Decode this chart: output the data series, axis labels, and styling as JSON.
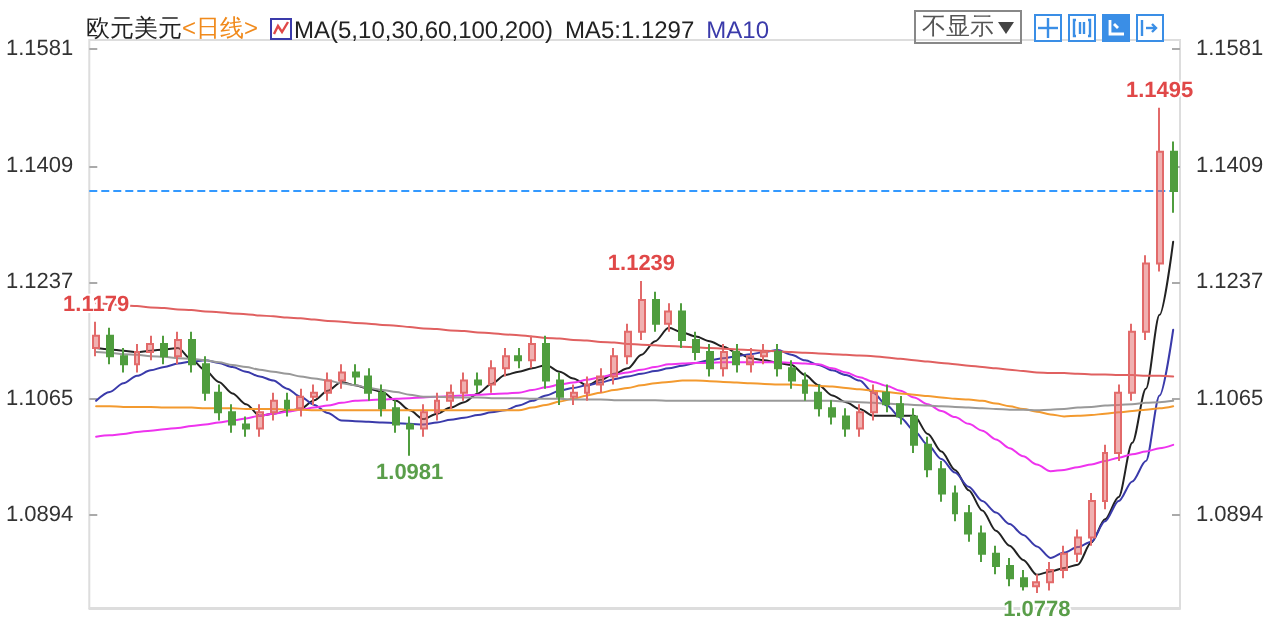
{
  "chart_data": {
    "type": "candlestick",
    "title": "欧元美元",
    "subtitle": "<日线>",
    "categories": [
      null,
      null,
      null,
      null,
      null,
      null,
      null,
      null,
      null,
      null,
      null,
      null,
      null,
      null,
      null,
      null,
      null,
      null,
      null,
      null,
      null,
      null,
      null,
      null,
      null,
      null,
      null,
      null,
      null,
      null,
      null,
      null,
      null,
      null,
      null,
      null,
      null,
      null,
      null,
      null,
      null,
      null,
      null,
      null,
      null,
      null,
      null,
      null,
      null,
      null,
      null,
      null,
      null,
      null,
      null,
      null,
      null,
      null,
      null,
      null,
      null,
      null,
      null,
      null,
      null,
      null,
      null,
      null,
      null,
      null,
      null,
      null,
      null,
      null,
      null,
      null,
      null,
      null,
      null,
      null
    ],
    "ohlc": [
      [
        1.114,
        1.1179,
        1.1128,
        1.1158
      ],
      [
        1.1158,
        1.117,
        1.1116,
        1.1128
      ],
      [
        1.1128,
        1.114,
        1.1104,
        1.1116
      ],
      [
        1.1116,
        1.1146,
        1.1104,
        1.1134
      ],
      [
        1.1134,
        1.1158,
        1.1122,
        1.1146
      ],
      [
        1.1146,
        1.1158,
        1.1116,
        1.1128
      ],
      [
        1.1128,
        1.1164,
        1.1116,
        1.1152
      ],
      [
        1.1152,
        1.1164,
        1.1104,
        1.1116
      ],
      [
        1.1116,
        1.1128,
        1.1062,
        1.1074
      ],
      [
        1.1074,
        1.1086,
        1.1033,
        1.1045
      ],
      [
        1.1045,
        1.1057,
        1.1015,
        1.1027
      ],
      [
        1.1027,
        1.1039,
        1.1009,
        1.1021
      ],
      [
        1.1021,
        1.1057,
        1.1009,
        1.1045
      ],
      [
        1.1045,
        1.1074,
        1.1033,
        1.1062
      ],
      [
        1.1062,
        1.1074,
        1.1039,
        1.1051
      ],
      [
        1.1051,
        1.108,
        1.1039,
        1.1068
      ],
      [
        1.1068,
        1.1086,
        1.1056,
        1.1074
      ],
      [
        1.1074,
        1.1104,
        1.1062,
        1.1092
      ],
      [
        1.1092,
        1.1116,
        1.108,
        1.1104
      ],
      [
        1.1104,
        1.1116,
        1.1086,
        1.1098
      ],
      [
        1.1098,
        1.111,
        1.1062,
        1.1074
      ],
      [
        1.1074,
        1.1086,
        1.1039,
        1.1051
      ],
      [
        1.1051,
        1.1063,
        1.1015,
        1.1027
      ],
      [
        1.1027,
        1.1039,
        1.0981,
        1.1021
      ],
      [
        1.1021,
        1.1057,
        1.1009,
        1.1045
      ],
      [
        1.1045,
        1.1074,
        1.1033,
        1.1062
      ],
      [
        1.1062,
        1.1086,
        1.105,
        1.1074
      ],
      [
        1.1074,
        1.1104,
        1.1062,
        1.1092
      ],
      [
        1.1092,
        1.1104,
        1.1074,
        1.1086
      ],
      [
        1.1086,
        1.1122,
        1.1074,
        1.111
      ],
      [
        1.111,
        1.114,
        1.1098,
        1.1128
      ],
      [
        1.1128,
        1.114,
        1.111,
        1.1122
      ],
      [
        1.1122,
        1.1158,
        1.111,
        1.1146
      ],
      [
        1.1146,
        1.1158,
        1.108,
        1.1092
      ],
      [
        1.1092,
        1.1104,
        1.1056,
        1.1068
      ],
      [
        1.1068,
        1.1086,
        1.1056,
        1.1074
      ],
      [
        1.1074,
        1.1098,
        1.1062,
        1.1086
      ],
      [
        1.1086,
        1.111,
        1.1074,
        1.1098
      ],
      [
        1.1098,
        1.114,
        1.1086,
        1.1128
      ],
      [
        1.1128,
        1.1176,
        1.1116,
        1.1164
      ],
      [
        1.1164,
        1.1239,
        1.1152,
        1.1211
      ],
      [
        1.1211,
        1.1223,
        1.1164,
        1.1176
      ],
      [
        1.1176,
        1.1206,
        1.1164,
        1.1194
      ],
      [
        1.1194,
        1.1206,
        1.114,
        1.1152
      ],
      [
        1.1152,
        1.1164,
        1.1122,
        1.1134
      ],
      [
        1.1134,
        1.1146,
        1.1098,
        1.111
      ],
      [
        1.111,
        1.1146,
        1.1098,
        1.1134
      ],
      [
        1.1134,
        1.1146,
        1.1104,
        1.1116
      ],
      [
        1.1116,
        1.114,
        1.1104,
        1.1128
      ],
      [
        1.1128,
        1.1146,
        1.1116,
        1.1134
      ],
      [
        1.1134,
        1.1146,
        1.1098,
        1.111
      ],
      [
        1.111,
        1.1122,
        1.108,
        1.1092
      ],
      [
        1.1092,
        1.1104,
        1.1062,
        1.1074
      ],
      [
        1.1074,
        1.1086,
        1.1039,
        1.1051
      ],
      [
        1.1051,
        1.1063,
        1.1027,
        1.1039
      ],
      [
        1.1039,
        1.1051,
        1.1009,
        1.1021
      ],
      [
        1.1021,
        1.1057,
        1.1009,
        1.1045
      ],
      [
        1.1045,
        1.1086,
        1.1033,
        1.1074
      ],
      [
        1.1074,
        1.1086,
        1.1045,
        1.1057
      ],
      [
        1.1057,
        1.1069,
        1.1027,
        1.1039
      ],
      [
        1.1039,
        1.1051,
        1.0985,
        1.0997
      ],
      [
        1.0997,
        1.1009,
        1.0949,
        1.0961
      ],
      [
        1.0961,
        1.0973,
        1.0913,
        1.0925
      ],
      [
        1.0925,
        1.0937,
        1.0884,
        1.0896
      ],
      [
        1.0896,
        1.0908,
        1.0854,
        1.0866
      ],
      [
        1.0866,
        1.0878,
        1.0824,
        1.0836
      ],
      [
        1.0836,
        1.0848,
        1.0806,
        1.0818
      ],
      [
        1.0818,
        1.083,
        1.0788,
        1.08
      ],
      [
        1.08,
        1.0812,
        1.0782,
        1.0788
      ],
      [
        1.0788,
        1.0806,
        1.0778,
        1.0794
      ],
      [
        1.0794,
        1.0824,
        1.0782,
        1.0812
      ],
      [
        1.0812,
        1.0848,
        1.08,
        1.0836
      ],
      [
        1.0836,
        1.0872,
        1.0824,
        1.086
      ],
      [
        1.086,
        1.0926,
        1.0848,
        1.0914
      ],
      [
        1.0914,
        1.0997,
        1.0902,
        1.0985
      ],
      [
        1.0985,
        1.1086,
        1.0973,
        1.1074
      ],
      [
        1.1074,
        1.1176,
        1.1062,
        1.1164
      ],
      [
        1.1164,
        1.1277,
        1.1152,
        1.1265
      ],
      [
        1.1265,
        1.1495,
        1.1253,
        1.143
      ],
      [
        1.143,
        1.1445,
        1.134,
        1.1372
      ]
    ],
    "colors": [
      "#e26a6a",
      "#4f9d3e",
      "#4f9d3e",
      "#e26a6a",
      "#e26a6a",
      "#4f9d3e",
      "#e26a6a",
      "#4f9d3e",
      "#4f9d3e",
      "#4f9d3e",
      "#4f9d3e",
      "#4f9d3e",
      "#e26a6a",
      "#e26a6a",
      "#4f9d3e",
      "#e26a6a",
      "#e26a6a",
      "#e26a6a",
      "#e26a6a",
      "#4f9d3e",
      "#4f9d3e",
      "#4f9d3e",
      "#4f9d3e",
      "#4f9d3e",
      "#e26a6a",
      "#e26a6a",
      "#e26a6a",
      "#e26a6a",
      "#4f9d3e",
      "#e26a6a",
      "#e26a6a",
      "#4f9d3e",
      "#e26a6a",
      "#4f9d3e",
      "#4f9d3e",
      "#e26a6a",
      "#e26a6a",
      "#e26a6a",
      "#e26a6a",
      "#e26a6a",
      "#e26a6a",
      "#4f9d3e",
      "#e26a6a",
      "#4f9d3e",
      "#4f9d3e",
      "#4f9d3e",
      "#e26a6a",
      "#4f9d3e",
      "#e26a6a",
      "#e26a6a",
      "#4f9d3e",
      "#4f9d3e",
      "#4f9d3e",
      "#4f9d3e",
      "#4f9d3e",
      "#4f9d3e",
      "#e26a6a",
      "#e26a6a",
      "#4f9d3e",
      "#4f9d3e",
      "#4f9d3e",
      "#4f9d3e",
      "#4f9d3e",
      "#4f9d3e",
      "#4f9d3e",
      "#4f9d3e",
      "#4f9d3e",
      "#4f9d3e",
      "#4f9d3e",
      "#e26a6a",
      "#e26a6a",
      "#e26a6a",
      "#e26a6a",
      "#e26a6a",
      "#e26a6a",
      "#e26a6a",
      "#e26a6a",
      "#e26a6a",
      "#e26a6a",
      "#4f9d3e"
    ],
    "series": [
      {
        "type": "line",
        "name": "MA5:1.1297",
        "color": "#222222",
        "values": [
          1.114,
          1.1138,
          1.1136,
          1.1134,
          1.1136,
          1.1138,
          1.114,
          1.1123,
          1.1107,
          1.109,
          1.1073,
          1.1057,
          1.104,
          1.1043,
          1.1047,
          1.105,
          1.1063,
          1.1077,
          1.109,
          1.1085,
          1.108,
          1.1075,
          1.1062,
          1.1048,
          1.1035,
          1.1043,
          1.1052,
          1.106,
          1.1073,
          1.1087,
          1.11,
          1.1105,
          1.111,
          1.1115,
          1.1105,
          1.1095,
          1.1085,
          1.1093,
          1.1102,
          1.111,
          1.113,
          1.115,
          1.117,
          1.1163,
          1.1157,
          1.115,
          1.1142,
          1.1133,
          1.1125,
          1.1122,
          1.1118,
          1.1115,
          1.11,
          1.1085,
          1.107,
          1.106,
          1.105,
          1.104,
          1.104,
          1.104,
          1.104,
          1.1013,
          1.0987,
          1.096,
          1.093,
          1.09,
          1.087,
          1.0848,
          1.0827,
          1.0805,
          1.081,
          1.0815,
          1.082,
          1.0853,
          1.0887,
          1.092,
          1.1,
          1.108,
          1.1189,
          1.1297
        ]
      },
      {
        "type": "line",
        "name": "MA10",
        "color": "#3a3aaa",
        "values": [
          1.1062,
          1.1075,
          1.1088,
          1.1099,
          1.1107,
          1.1112,
          1.1117,
          1.112,
          1.1122,
          1.1118,
          1.1112,
          1.1105,
          1.1098,
          1.1092,
          1.108,
          1.1068,
          1.1056,
          1.1044,
          1.1033,
          1.1032,
          1.1031,
          1.103,
          1.1029,
          1.1028,
          1.1027,
          1.103,
          1.1034,
          1.1037,
          1.1041,
          1.1045,
          1.1048,
          1.1055,
          1.1062,
          1.107,
          1.1077,
          1.1081,
          1.1085,
          1.1089,
          1.1094,
          1.1098,
          1.1102,
          1.1106,
          1.111,
          1.1114,
          1.1118,
          1.1122,
          1.1125,
          1.1128,
          1.1131,
          1.1134,
          1.1137,
          1.113,
          1.1122,
          1.1115,
          1.1107,
          1.11,
          1.1092,
          1.1074,
          1.1055,
          1.1037,
          1.1018,
          1.0997,
          1.0976,
          1.0956,
          1.0935,
          1.0914,
          1.0897,
          1.088,
          1.0864,
          1.0847,
          1.083,
          1.0838,
          1.0846,
          1.0854,
          1.0884,
          1.0914,
          1.0943,
          1.0973,
          1.107,
          1.1167
        ]
      },
      {
        "type": "line",
        "color": "#ee33ee",
        "values": [
          1.1009,
          1.1011,
          1.1013,
          1.1016,
          1.1018,
          1.102,
          1.1022,
          1.1025,
          1.1027,
          1.103,
          1.1033,
          1.1036,
          1.104,
          1.1043,
          1.1046,
          1.1049,
          1.1052,
          1.1055,
          1.1059,
          1.1062,
          1.1063,
          1.1064,
          1.1065,
          1.1066,
          1.1067,
          1.1068,
          1.1069,
          1.107,
          1.1071,
          1.1072,
          1.1073,
          1.1074,
          1.1078,
          1.1082,
          1.1086,
          1.1089,
          1.1093,
          1.1097,
          1.1101,
          1.1104,
          1.1108,
          1.1112,
          1.1116,
          1.1117,
          1.1118,
          1.1118,
          1.1119,
          1.1119,
          1.1119,
          1.1119,
          1.1119,
          1.1118,
          1.1117,
          1.1116,
          1.111,
          1.1104,
          1.1097,
          1.109,
          1.1084,
          1.1077,
          1.1067,
          1.1057,
          1.1047,
          1.1038,
          1.1028,
          1.1018,
          1.1005,
          1.0992,
          1.098,
          1.0968,
          1.0958,
          1.096,
          1.0964,
          1.0968,
          1.0973,
          1.0978,
          1.0983,
          1.0987,
          1.0992,
          1.0997
        ]
      },
      {
        "type": "line",
        "color": "#f39a2f",
        "values": [
          1.1054,
          1.1054,
          1.1053,
          1.1053,
          1.1053,
          1.1052,
          1.1052,
          1.1052,
          1.1051,
          1.1051,
          1.1051,
          1.105,
          1.105,
          1.105,
          1.1049,
          1.1049,
          1.1048,
          1.1048,
          1.1048,
          1.1048,
          1.1048,
          1.1048,
          1.1048,
          1.1048,
          1.1048,
          1.1048,
          1.1048,
          1.1048,
          1.1048,
          1.1048,
          1.1048,
          1.1048,
          1.1052,
          1.1056,
          1.1061,
          1.1065,
          1.107,
          1.1074,
          1.1078,
          1.1081,
          1.1085,
          1.1088,
          1.109,
          1.1092,
          1.1092,
          1.1091,
          1.109,
          1.1089,
          1.1088,
          1.1087,
          1.1086,
          1.1086,
          1.1085,
          1.1084,
          1.1083,
          1.1081,
          1.1079,
          1.1077,
          1.1075,
          1.1073,
          1.1071,
          1.1069,
          1.1067,
          1.1065,
          1.1064,
          1.1062,
          1.1058,
          1.1054,
          1.105,
          1.1046,
          1.1042,
          1.1039,
          1.104,
          1.1041,
          1.1043,
          1.1045,
          1.1047,
          1.1049,
          1.1051,
          1.1054
        ]
      },
      {
        "type": "line",
        "color": "#999999",
        "values": [
          1.1134,
          1.1133,
          1.1131,
          1.113,
          1.1128,
          1.1127,
          1.1125,
          1.1124,
          1.1122,
          1.1119,
          1.1115,
          1.1112,
          1.1108,
          1.1105,
          1.1102,
          1.1098,
          1.1095,
          1.1092,
          1.1088,
          1.1085,
          1.1081,
          1.1078,
          1.1075,
          1.1071,
          1.1068,
          1.1068,
          1.1067,
          1.1067,
          1.1067,
          1.1066,
          1.1066,
          1.1066,
          1.1065,
          1.1065,
          1.1065,
          1.1064,
          1.1064,
          1.1064,
          1.1063,
          1.1063,
          1.1063,
          1.1063,
          1.1062,
          1.1062,
          1.1062,
          1.1062,
          1.1062,
          1.1062,
          1.1062,
          1.1062,
          1.1062,
          1.1062,
          1.1062,
          1.1062,
          1.1062,
          1.1061,
          1.106,
          1.1059,
          1.1058,
          1.1057,
          1.1056,
          1.1055,
          1.1054,
          1.1053,
          1.1052,
          1.1051,
          1.105,
          1.1049,
          1.1049,
          1.1048,
          1.1049,
          1.105,
          1.1052,
          1.1053,
          1.1055,
          1.1056,
          1.1057,
          1.1059,
          1.106,
          1.1062
        ]
      },
      {
        "type": "line",
        "color": "#e06060",
        "values": [
          1.1206,
          1.1205,
          1.1203,
          1.1202,
          1.12,
          1.1199,
          1.1197,
          1.1196,
          1.1194,
          1.1193,
          1.1191,
          1.119,
          1.1188,
          1.1187,
          1.1185,
          1.1184,
          1.1182,
          1.118,
          1.1179,
          1.1177,
          1.1176,
          1.1174,
          1.1173,
          1.1171,
          1.1169,
          1.1168,
          1.1166,
          1.1165,
          1.1163,
          1.1162,
          1.116,
          1.1159,
          1.1157,
          1.1155,
          1.1154,
          1.1152,
          1.1151,
          1.1149,
          1.1148,
          1.1146,
          1.1145,
          1.1144,
          1.1143,
          1.1142,
          1.1141,
          1.114,
          1.1139,
          1.1138,
          1.1137,
          1.1136,
          1.1135,
          1.1134,
          1.1133,
          1.1132,
          1.1131,
          1.113,
          1.1129,
          1.1128,
          1.1126,
          1.1124,
          1.1122,
          1.112,
          1.1118,
          1.1116,
          1.1114,
          1.1112,
          1.111,
          1.1108,
          1.1106,
          1.1104,
          1.1103,
          1.1103,
          1.1102,
          1.1101,
          1.1101,
          1.11,
          1.11,
          1.1099,
          1.1099,
          1.1098
        ]
      }
    ],
    "ylim": [
      1.0756,
      1.1595
    ],
    "yticks": [
      1.0894,
      1.1065,
      1.1237,
      1.1409,
      1.1581
    ],
    "y2lim": [
      1.0756,
      1.1595
    ],
    "y2ticks": [
      1.0894,
      1.1065,
      1.1237,
      1.1409,
      1.1581
    ],
    "ref_lines": [
      {
        "axis": "y",
        "value": 1.1372,
        "color": "#3399ff",
        "line_style": "dashed"
      }
    ],
    "annotations": [
      "MA(5,10,30,60,100,200)",
      "不显示",
      {
        "text": "1.1495",
        "y": 1.1495
      },
      {
        "text": "1.1239",
        "y": 1.1239
      },
      {
        "text": "1.1179",
        "y": 1.1179
      },
      {
        "text": "1.0981",
        "y": 1.0981
      },
      {
        "text": "1.0778",
        "y": 1.0778
      }
    ],
    "tick_labels": "y",
    "grid": false,
    "legend": "top left",
    "line_style": "solid"
  }
}
